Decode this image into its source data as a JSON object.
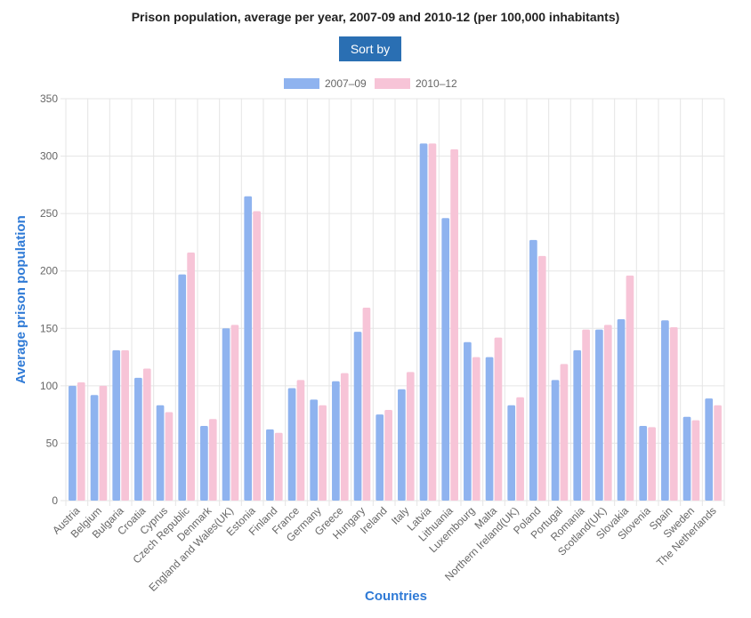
{
  "header": {
    "title": "Prison population, average per year, 2007-09 and 2010-12 (per 100,000 inhabitants)",
    "sort_label": "Sort by"
  },
  "colors": {
    "series_2007": "#8fb3ef",
    "series_2010": "#f7c4d7",
    "axis_title": "#2f7ad6",
    "button": "#2a6fb3",
    "grid": "#e5e5e5"
  },
  "chart_data": {
    "type": "bar",
    "title": "Prison population, average per year, 2007-09 and 2010-12 (per 100,000 inhabitants)",
    "xlabel": "Countries",
    "ylabel": "Average prison population",
    "ylim": [
      0,
      350
    ],
    "yticks": [
      0,
      50,
      100,
      150,
      200,
      250,
      300,
      350
    ],
    "grid": true,
    "legend_position": "top",
    "categories": [
      "Austria",
      "Belgium",
      "Bulgaria",
      "Croatia",
      "Cyprus",
      "Czech Republic",
      "Denmark",
      "England and Wales(UK)",
      "Estonia",
      "Finland",
      "France",
      "Germany",
      "Greece",
      "Hungary",
      "Ireland",
      "Italy",
      "Latvia",
      "Lithuania",
      "Luxembourg",
      "Malta",
      "Northern Ireland(UK)",
      "Poland",
      "Portugal",
      "Romania",
      "Scotland(UK)",
      "Slovakia",
      "Slovenia",
      "Spain",
      "Sweden",
      "The Netherlands"
    ],
    "series": [
      {
        "name": "2007–09",
        "values": [
          100,
          92,
          131,
          107,
          83,
          197,
          65,
          150,
          265,
          62,
          98,
          88,
          104,
          147,
          75,
          97,
          311,
          246,
          138,
          125,
          83,
          227,
          105,
          131,
          149,
          158,
          65,
          157,
          73,
          89
        ]
      },
      {
        "name": "2010–12",
        "values": [
          103,
          100,
          131,
          115,
          77,
          216,
          71,
          153,
          252,
          59,
          105,
          83,
          111,
          168,
          79,
          112,
          311,
          306,
          125,
          142,
          90,
          213,
          119,
          149,
          153,
          196,
          64,
          151,
          70,
          83
        ]
      }
    ]
  }
}
